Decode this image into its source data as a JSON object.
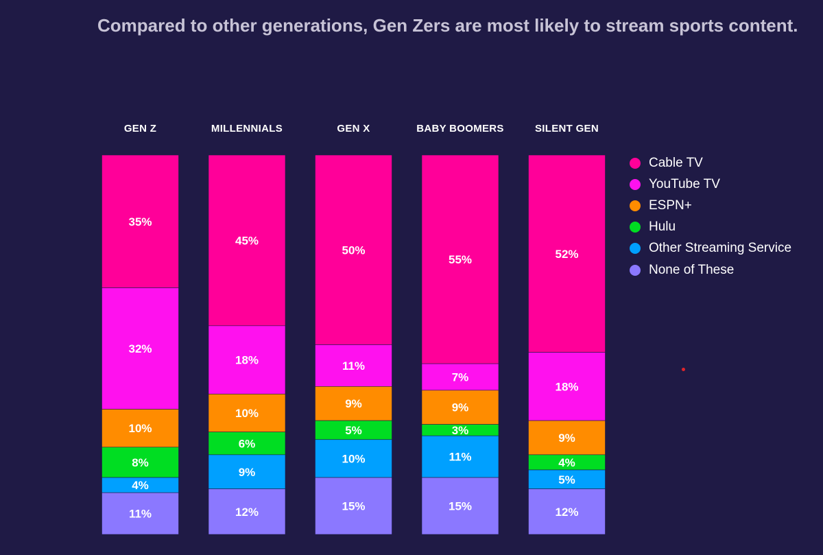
{
  "chart_data": {
    "type": "bar",
    "stacked": true,
    "normalized": true,
    "title": "Compared to other generations, Gen Zers are most likely to stream sports content.",
    "categories": [
      "GEN Z",
      "MILLENNIALS",
      "GEN X",
      "BABY BOOMERS",
      "SILENT GEN"
    ],
    "stack_order": "top-to-bottom",
    "series": [
      {
        "name": "Cable TV",
        "color": "#ff0099",
        "values": [
          35,
          45,
          50,
          55,
          52
        ]
      },
      {
        "name": "YouTube TV",
        "color": "#ff11ee",
        "values": [
          32,
          18,
          11,
          7,
          18
        ]
      },
      {
        "name": "ESPN+",
        "color": "#ff8c00",
        "values": [
          10,
          10,
          9,
          9,
          9
        ]
      },
      {
        "name": "Hulu",
        "color": "#00dd22",
        "values": [
          8,
          6,
          5,
          3,
          4
        ]
      },
      {
        "name": "Other Streaming Service",
        "color": "#00a0ff",
        "values": [
          4,
          9,
          10,
          11,
          5
        ]
      },
      {
        "name": "None of These",
        "color": "#8b78ff",
        "values": [
          11,
          12,
          15,
          15,
          12
        ]
      }
    ],
    "value_suffix": "%",
    "legend_position": "right",
    "grid": false
  }
}
